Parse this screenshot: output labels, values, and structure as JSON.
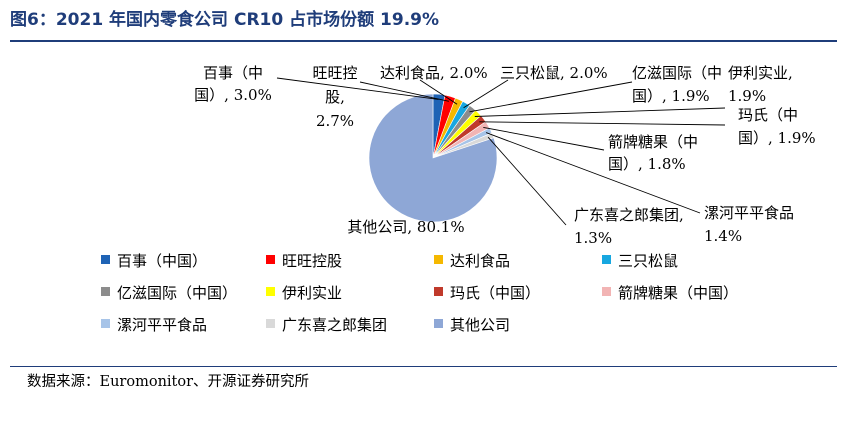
{
  "header": {
    "title": "图6：2021 年国内零食公司 CR10 占市场份额 19.9%"
  },
  "source": "数据来源：Euromonitor、开源证券研究所",
  "colors": {
    "title_blue": "#1f3d7a"
  },
  "chart_data": {
    "type": "pie",
    "title": "",
    "unit": "%",
    "legend_position": "bottom",
    "slices": [
      {
        "name": "百事（中国）",
        "value": 3.0,
        "color": "#1f63b5",
        "label_lines": [
          "百事（中",
          "国）, 3.0%"
        ]
      },
      {
        "name": "旺旺控股",
        "value": 2.7,
        "color": "#ff0000",
        "label_lines": [
          "旺旺控",
          "股,",
          "2.7%"
        ]
      },
      {
        "name": "达利食品",
        "value": 2.0,
        "color": "#f5b800",
        "label_lines": [
          "达利食品, 2.0%"
        ]
      },
      {
        "name": "三只松鼠",
        "value": 2.0,
        "color": "#17a7e0",
        "label_lines": [
          "三只松鼠, 2.0%"
        ]
      },
      {
        "name": "亿滋国际（中国）",
        "value": 1.9,
        "color": "#8c8c8c",
        "label_lines": [
          "亿滋国际（中",
          "国）, 1.9%"
        ]
      },
      {
        "name": "伊利实业",
        "value": 1.9,
        "color": "#ffff00",
        "label_lines": [
          "伊利实业,",
          "1.9%"
        ]
      },
      {
        "name": "玛氏（中国）",
        "value": 1.9,
        "color": "#c0392b",
        "label_lines": [
          "玛氏（中",
          "国）, 1.9%"
        ]
      },
      {
        "name": "箭牌糖果（中国）",
        "value": 1.8,
        "color": "#f2b4b4",
        "label_lines": [
          "箭牌糖果（中",
          "国）, 1.8%"
        ]
      },
      {
        "name": "漯河平平食品",
        "value": 1.4,
        "color": "#a7c4e8",
        "label_lines": [
          "漯河平平食品",
          "1.4%"
        ]
      },
      {
        "name": "广东喜之郎集团",
        "value": 1.3,
        "color": "#d9d9d9",
        "label_lines": [
          "广东喜之郎集团,",
          "1.3%"
        ]
      },
      {
        "name": "其他公司",
        "value": 80.1,
        "color": "#8ea7d6",
        "label_lines": [
          "其他公司, 80.1%"
        ]
      }
    ]
  }
}
